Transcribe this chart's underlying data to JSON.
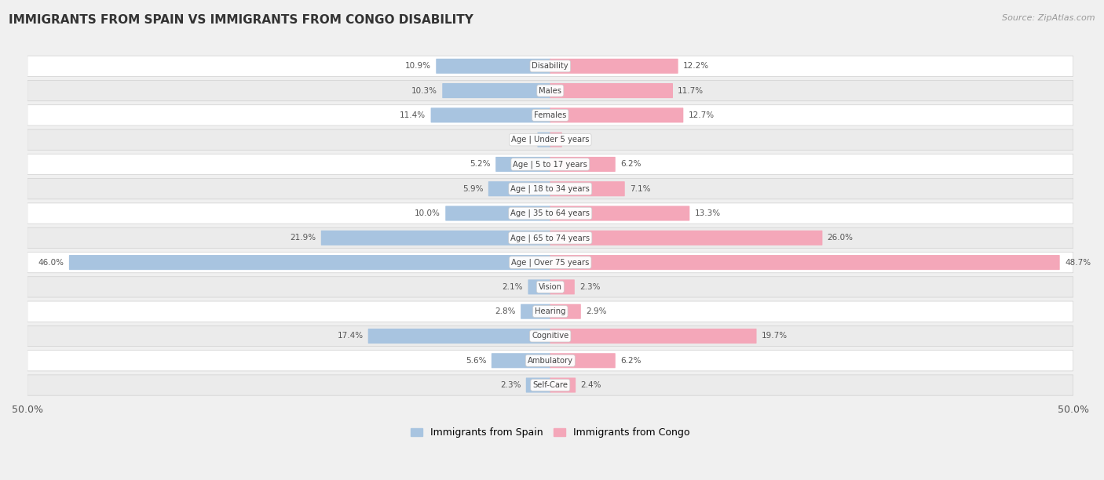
{
  "title": "IMMIGRANTS FROM SPAIN VS IMMIGRANTS FROM CONGO DISABILITY",
  "source": "Source: ZipAtlas.com",
  "categories": [
    "Disability",
    "Males",
    "Females",
    "Age | Under 5 years",
    "Age | 5 to 17 years",
    "Age | 18 to 34 years",
    "Age | 35 to 64 years",
    "Age | 65 to 74 years",
    "Age | Over 75 years",
    "Vision",
    "Hearing",
    "Cognitive",
    "Ambulatory",
    "Self-Care"
  ],
  "spain_values": [
    10.9,
    10.3,
    11.4,
    1.2,
    5.2,
    5.9,
    10.0,
    21.9,
    46.0,
    2.1,
    2.8,
    17.4,
    5.6,
    2.3
  ],
  "congo_values": [
    12.2,
    11.7,
    12.7,
    1.1,
    6.2,
    7.1,
    13.3,
    26.0,
    48.7,
    2.3,
    2.9,
    19.7,
    6.2,
    2.4
  ],
  "spain_color": "#a8c4e0",
  "congo_color": "#f4a7b9",
  "congo_color_dark": "#e8799a",
  "spain_color_dark": "#7ba7cc",
  "row_bg_light": "#ffffff",
  "row_bg_dark": "#ebebeb",
  "background_color": "#f0f0f0",
  "x_max": 50.0,
  "legend_spain": "Immigrants from Spain",
  "legend_congo": "Immigrants from Congo"
}
